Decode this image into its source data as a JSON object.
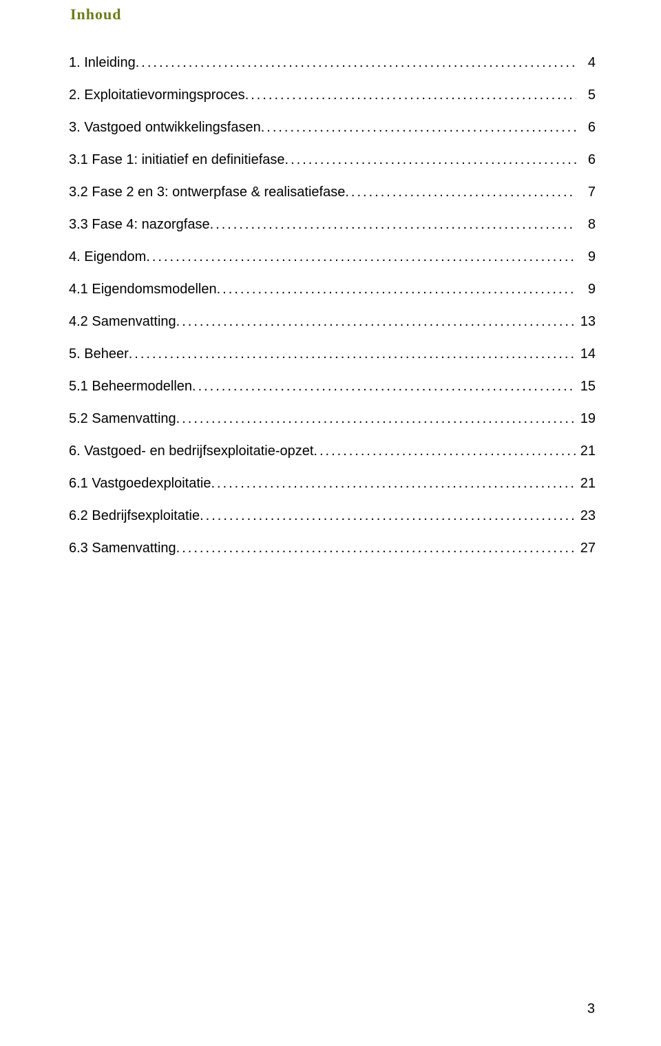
{
  "title": "Inhoud",
  "page_number": "3",
  "colors": {
    "title_color": "#6b7d18",
    "text_color": "#000000",
    "background": "#ffffff"
  },
  "typography": {
    "title_fontsize_pt": 16,
    "body_fontsize_pt": 15,
    "title_font": "Bookman Old Style",
    "body_font": "Arial"
  },
  "toc": [
    {
      "label": "1. Inleiding",
      "page": "4",
      "level": 1,
      "gap_before": false
    },
    {
      "label": "2. Exploitatievormingsproces",
      "page": "5",
      "level": 1,
      "gap_before": true
    },
    {
      "label": "3. Vastgoed ontwikkelingsfasen",
      "page": "6",
      "level": 1,
      "gap_before": true
    },
    {
      "label": "3.1 Fase 1: initiatief en definitiefase",
      "page": "6",
      "level": 2,
      "gap_before": false
    },
    {
      "label": "3.2 Fase 2 en 3: ontwerpfase & realisatiefase",
      "page": "7",
      "level": 2,
      "gap_before": false
    },
    {
      "label": "3.3 Fase 4: nazorgfase",
      "page": "8",
      "level": 2,
      "gap_before": false
    },
    {
      "label": "4. Eigendom",
      "page": "9",
      "level": 1,
      "gap_before": true
    },
    {
      "label": "4.1 Eigendomsmodellen",
      "page": "9",
      "level": 2,
      "gap_before": false
    },
    {
      "label": "4.2 Samenvatting",
      "page": "13",
      "level": 2,
      "gap_before": false
    },
    {
      "label": "5. Beheer",
      "page": "14",
      "level": 1,
      "gap_before": true
    },
    {
      "label": "5.1 Beheermodellen",
      "page": "15",
      "level": 2,
      "gap_before": false
    },
    {
      "label": "5.2 Samenvatting",
      "page": "19",
      "level": 2,
      "gap_before": false
    },
    {
      "label": "6. Vastgoed- en bedrijfsexploitatie-opzet",
      "page": "21",
      "level": 1,
      "gap_before": true
    },
    {
      "label": "6.1 Vastgoedexploitatie",
      "page": "21",
      "level": 2,
      "gap_before": false
    },
    {
      "label": "6.2 Bedrijfsexploitatie",
      "page": "23",
      "level": 2,
      "gap_before": false
    },
    {
      "label": "6.3 Samenvatting",
      "page": "27",
      "level": 2,
      "gap_before": false
    }
  ]
}
